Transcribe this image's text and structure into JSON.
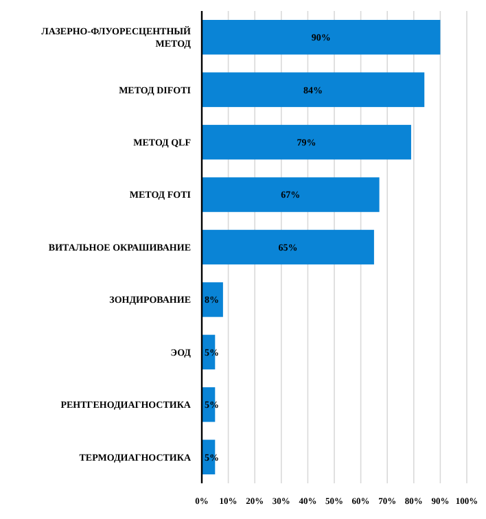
{
  "chart_data": {
    "type": "bar",
    "orientation": "horizontal",
    "categories": [
      "ЛАЗЕРНО-ФЛУОРЕСЦЕНТНЫЙ МЕТОД",
      "МЕТОД DIFOTI",
      "МЕТОД QLF",
      "МЕТОД FOTI",
      "ВИТАЛЬНОЕ ОКРАШИВАНИЕ",
      "ЗОНДИРОВАНИЕ",
      "ЭОД",
      "РЕНТГЕНОДИАГНОСТИКА",
      "ТЕРМОДИАГНОСТИКА"
    ],
    "values": [
      90,
      84,
      79,
      67,
      65,
      8,
      5,
      5,
      5
    ],
    "value_labels": [
      "90%",
      "84%",
      "79%",
      "67%",
      "65%",
      "8%",
      "5%",
      "5%",
      "5%"
    ],
    "color": "#0a84d6",
    "xlim": [
      0,
      100
    ],
    "xticks": [
      {
        "value": 0,
        "label": "0%"
      },
      {
        "value": 10,
        "label": "10%"
      },
      {
        "value": 20,
        "label": "20%"
      },
      {
        "value": 30,
        "label": "30%"
      },
      {
        "value": 40,
        "label": "40%"
      },
      {
        "value": 50,
        "label": "50%"
      },
      {
        "value": 60,
        "label": "60%"
      },
      {
        "value": 70,
        "label": "70%"
      },
      {
        "value": 80,
        "label": "80%"
      },
      {
        "value": 90,
        "label": "90%"
      },
      {
        "value": 100,
        "label": "100%"
      }
    ],
    "grid": "x"
  }
}
